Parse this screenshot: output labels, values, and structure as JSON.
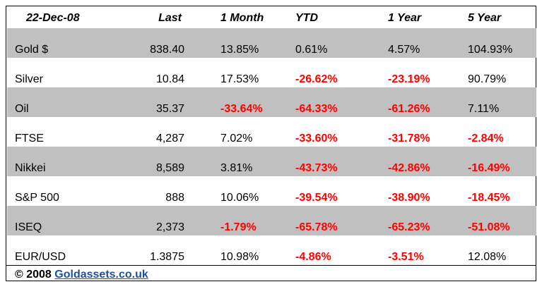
{
  "table": {
    "header": [
      "22-Dec-08",
      "Last",
      "1 Month",
      "YTD",
      "1 Year",
      "5 Year"
    ],
    "rows": [
      [
        "Gold $",
        "838.40",
        "13.85%",
        "0.61%",
        "4.57%",
        "104.93%"
      ],
      [
        "Silver",
        "10.84",
        "17.53%",
        "-26.62%",
        "-23.19%",
        "90.79%"
      ],
      [
        "Oil",
        "35.37",
        "-33.64%",
        "-64.33%",
        "-61.26%",
        "7.11%"
      ],
      [
        "FTSE",
        "4,287",
        "7.02%",
        "-33.60%",
        "-31.78%",
        "-2.84%"
      ],
      [
        "Nikkei",
        "8,589",
        "3.81%",
        "-43.73%",
        "-42.86%",
        "-16.49%"
      ],
      [
        "S&P 500",
        "888",
        "10.06%",
        "-39.54%",
        "-38.90%",
        "-18.45%"
      ],
      [
        "ISEQ",
        "2,373",
        "-1.79%",
        "-65.78%",
        "-65.23%",
        "-51.08%"
      ],
      [
        "EUR/USD",
        "1.3875",
        "10.98%",
        "-4.86%",
        "-3.51%",
        "12.08%"
      ]
    ]
  },
  "footer": {
    "prefix": "© 2008",
    "link": "Goldassets.co.uk"
  }
}
